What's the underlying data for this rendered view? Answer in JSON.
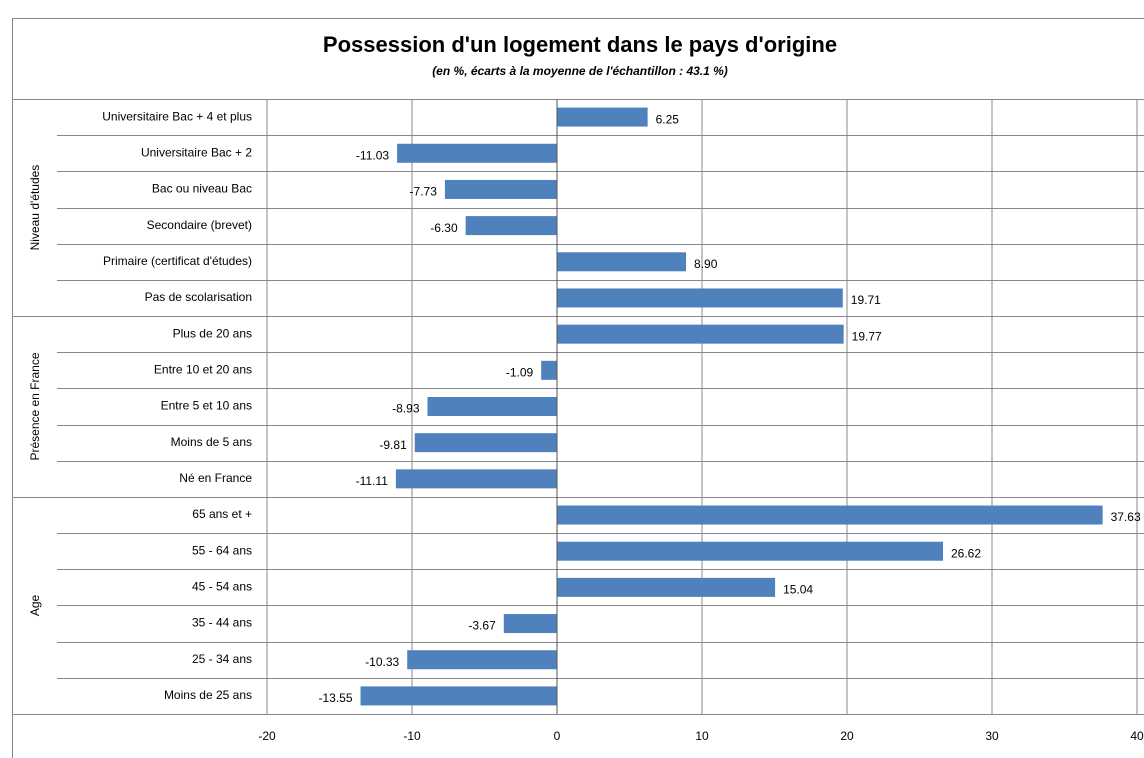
{
  "chart_data": {
    "type": "bar",
    "orientation": "horizontal",
    "title": "Possession d'un logement dans le pays d'origine",
    "subtitle": "(en %, écarts à la moyenne de l'échantillon : 43.1  %)",
    "color": "#4f81bd",
    "groups": [
      {
        "name": "Niveau d'études",
        "categories": [
          "Universitaire Bac + 4 et plus",
          "Universitaire Bac + 2",
          "Bac ou niveau Bac",
          "Secondaire (brevet)",
          "Primaire (certificat d'études)",
          "Pas de scolarisation"
        ],
        "values": [
          6.25,
          -11.03,
          -7.73,
          -6.3,
          8.9,
          19.71
        ],
        "value_labels": [
          "6.25",
          "-11.03",
          "-7.73",
          "-6.30",
          "8.90",
          "19.71"
        ]
      },
      {
        "name": "Présence en France",
        "categories": [
          "Plus de 20 ans",
          "Entre 10 et 20 ans",
          "Entre 5 et 10 ans",
          "Moins de 5 ans",
          "Né en France"
        ],
        "values": [
          19.77,
          -1.09,
          -8.93,
          -9.81,
          -11.11
        ],
        "value_labels": [
          "19.77",
          "-1.09",
          "-8.93",
          "-9.81",
          "-11.11"
        ]
      },
      {
        "name": "Age",
        "categories": [
          "65 ans et +",
          "55 - 64 ans",
          "45 - 54 ans",
          "35 - 44 ans",
          "25 - 34 ans",
          "Moins de 25 ans"
        ],
        "values": [
          37.63,
          26.62,
          15.04,
          -3.67,
          -10.33,
          -13.55
        ],
        "value_labels": [
          "37.63",
          "26.62",
          "15.04",
          "-3.67",
          "-10.33",
          "-13.55"
        ]
      }
    ],
    "xlim": [
      -20,
      40
    ],
    "xticks": [
      -20,
      -10,
      0,
      10,
      20,
      30,
      40
    ],
    "grid": true
  }
}
